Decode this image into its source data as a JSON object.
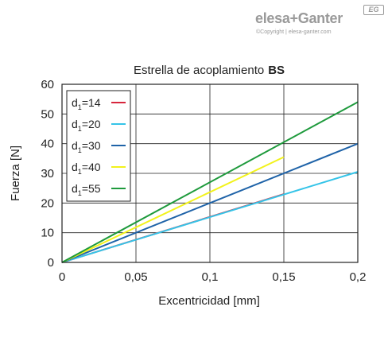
{
  "logo": {
    "brand": "elesa+Ganter",
    "badge": "EG",
    "copyright": "©Copyright | elesa-ganter.com"
  },
  "chart_data": {
    "type": "line",
    "title": "Estrella de acoplamiento",
    "title_bold": "BS",
    "xlabel": "Excentricidad [mm]",
    "ylabel": "Fuerza [N]",
    "xlim": [
      0,
      0.2
    ],
    "ylim": [
      0,
      60
    ],
    "xticks": [
      0,
      0.05,
      0.1,
      0.15,
      0.2
    ],
    "xtick_labels": [
      "0",
      "0,05",
      "0,1",
      "0,15",
      "0,2"
    ],
    "yticks": [
      0,
      10,
      20,
      30,
      40,
      50,
      60
    ],
    "ytick_labels": [
      "0",
      "10",
      "20",
      "30",
      "40",
      "50",
      "60"
    ],
    "grid": true,
    "legend_position": "top-left",
    "series": [
      {
        "name": "d1=14",
        "name_base": "d",
        "name_sub": "1",
        "name_rest": "=14",
        "color": "#d7263d",
        "x": [
          0,
          0.15
        ],
        "y": [
          0,
          23
        ]
      },
      {
        "name": "d1=20",
        "name_base": "d",
        "name_sub": "1",
        "name_rest": "=20",
        "color": "#35c4e8",
        "x": [
          0,
          0.2
        ],
        "y": [
          0,
          30.5
        ]
      },
      {
        "name": "d1=30",
        "name_base": "d",
        "name_sub": "1",
        "name_rest": "=30",
        "color": "#1f63a8",
        "x": [
          0,
          0.2
        ],
        "y": [
          0,
          40
        ]
      },
      {
        "name": "d1=40",
        "name_base": "d",
        "name_sub": "1",
        "name_rest": "=40",
        "color": "#f2f21c",
        "x": [
          0,
          0.15
        ],
        "y": [
          0,
          35.5
        ]
      },
      {
        "name": "d1=55",
        "name_base": "d",
        "name_sub": "1",
        "name_rest": "=55",
        "color": "#1e9a3c",
        "x": [
          0,
          0.2
        ],
        "y": [
          0,
          54
        ]
      }
    ]
  }
}
